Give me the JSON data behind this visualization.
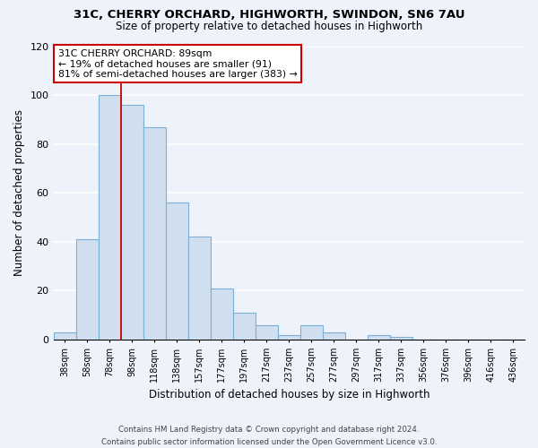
{
  "title": "31C, CHERRY ORCHARD, HIGHWORTH, SWINDON, SN6 7AU",
  "subtitle": "Size of property relative to detached houses in Highworth",
  "xlabel": "Distribution of detached houses by size in Highworth",
  "ylabel": "Number of detached properties",
  "bar_labels": [
    "38sqm",
    "58sqm",
    "78sqm",
    "98sqm",
    "118sqm",
    "138sqm",
    "157sqm",
    "177sqm",
    "197sqm",
    "217sqm",
    "237sqm",
    "257sqm",
    "277sqm",
    "297sqm",
    "317sqm",
    "337sqm",
    "356sqm",
    "376sqm",
    "396sqm",
    "416sqm",
    "436sqm"
  ],
  "bar_values": [
    3,
    41,
    100,
    96,
    87,
    56,
    42,
    21,
    11,
    6,
    2,
    6,
    3,
    0,
    2,
    1,
    0,
    0,
    0,
    0,
    0
  ],
  "bar_color": "#cfdff0",
  "bar_edge_color": "#7bafd4",
  "ylim": [
    0,
    120
  ],
  "yticks": [
    0,
    20,
    40,
    60,
    80,
    100,
    120
  ],
  "annotation_title": "31C CHERRY ORCHARD: 89sqm",
  "annotation_line1": "← 19% of detached houses are smaller (91)",
  "annotation_line2": "81% of semi-detached houses are larger (383) →",
  "annotation_box_facecolor": "#ffffff",
  "annotation_box_edgecolor": "#cc0000",
  "red_line_bar_index": 2,
  "footer_line1": "Contains HM Land Registry data © Crown copyright and database right 2024.",
  "footer_line2": "Contains public sector information licensed under the Open Government Licence v3.0.",
  "background_color": "#eef2fa",
  "grid_color": "#ffffff",
  "title_fontsize": 9.5,
  "subtitle_fontsize": 8.5
}
